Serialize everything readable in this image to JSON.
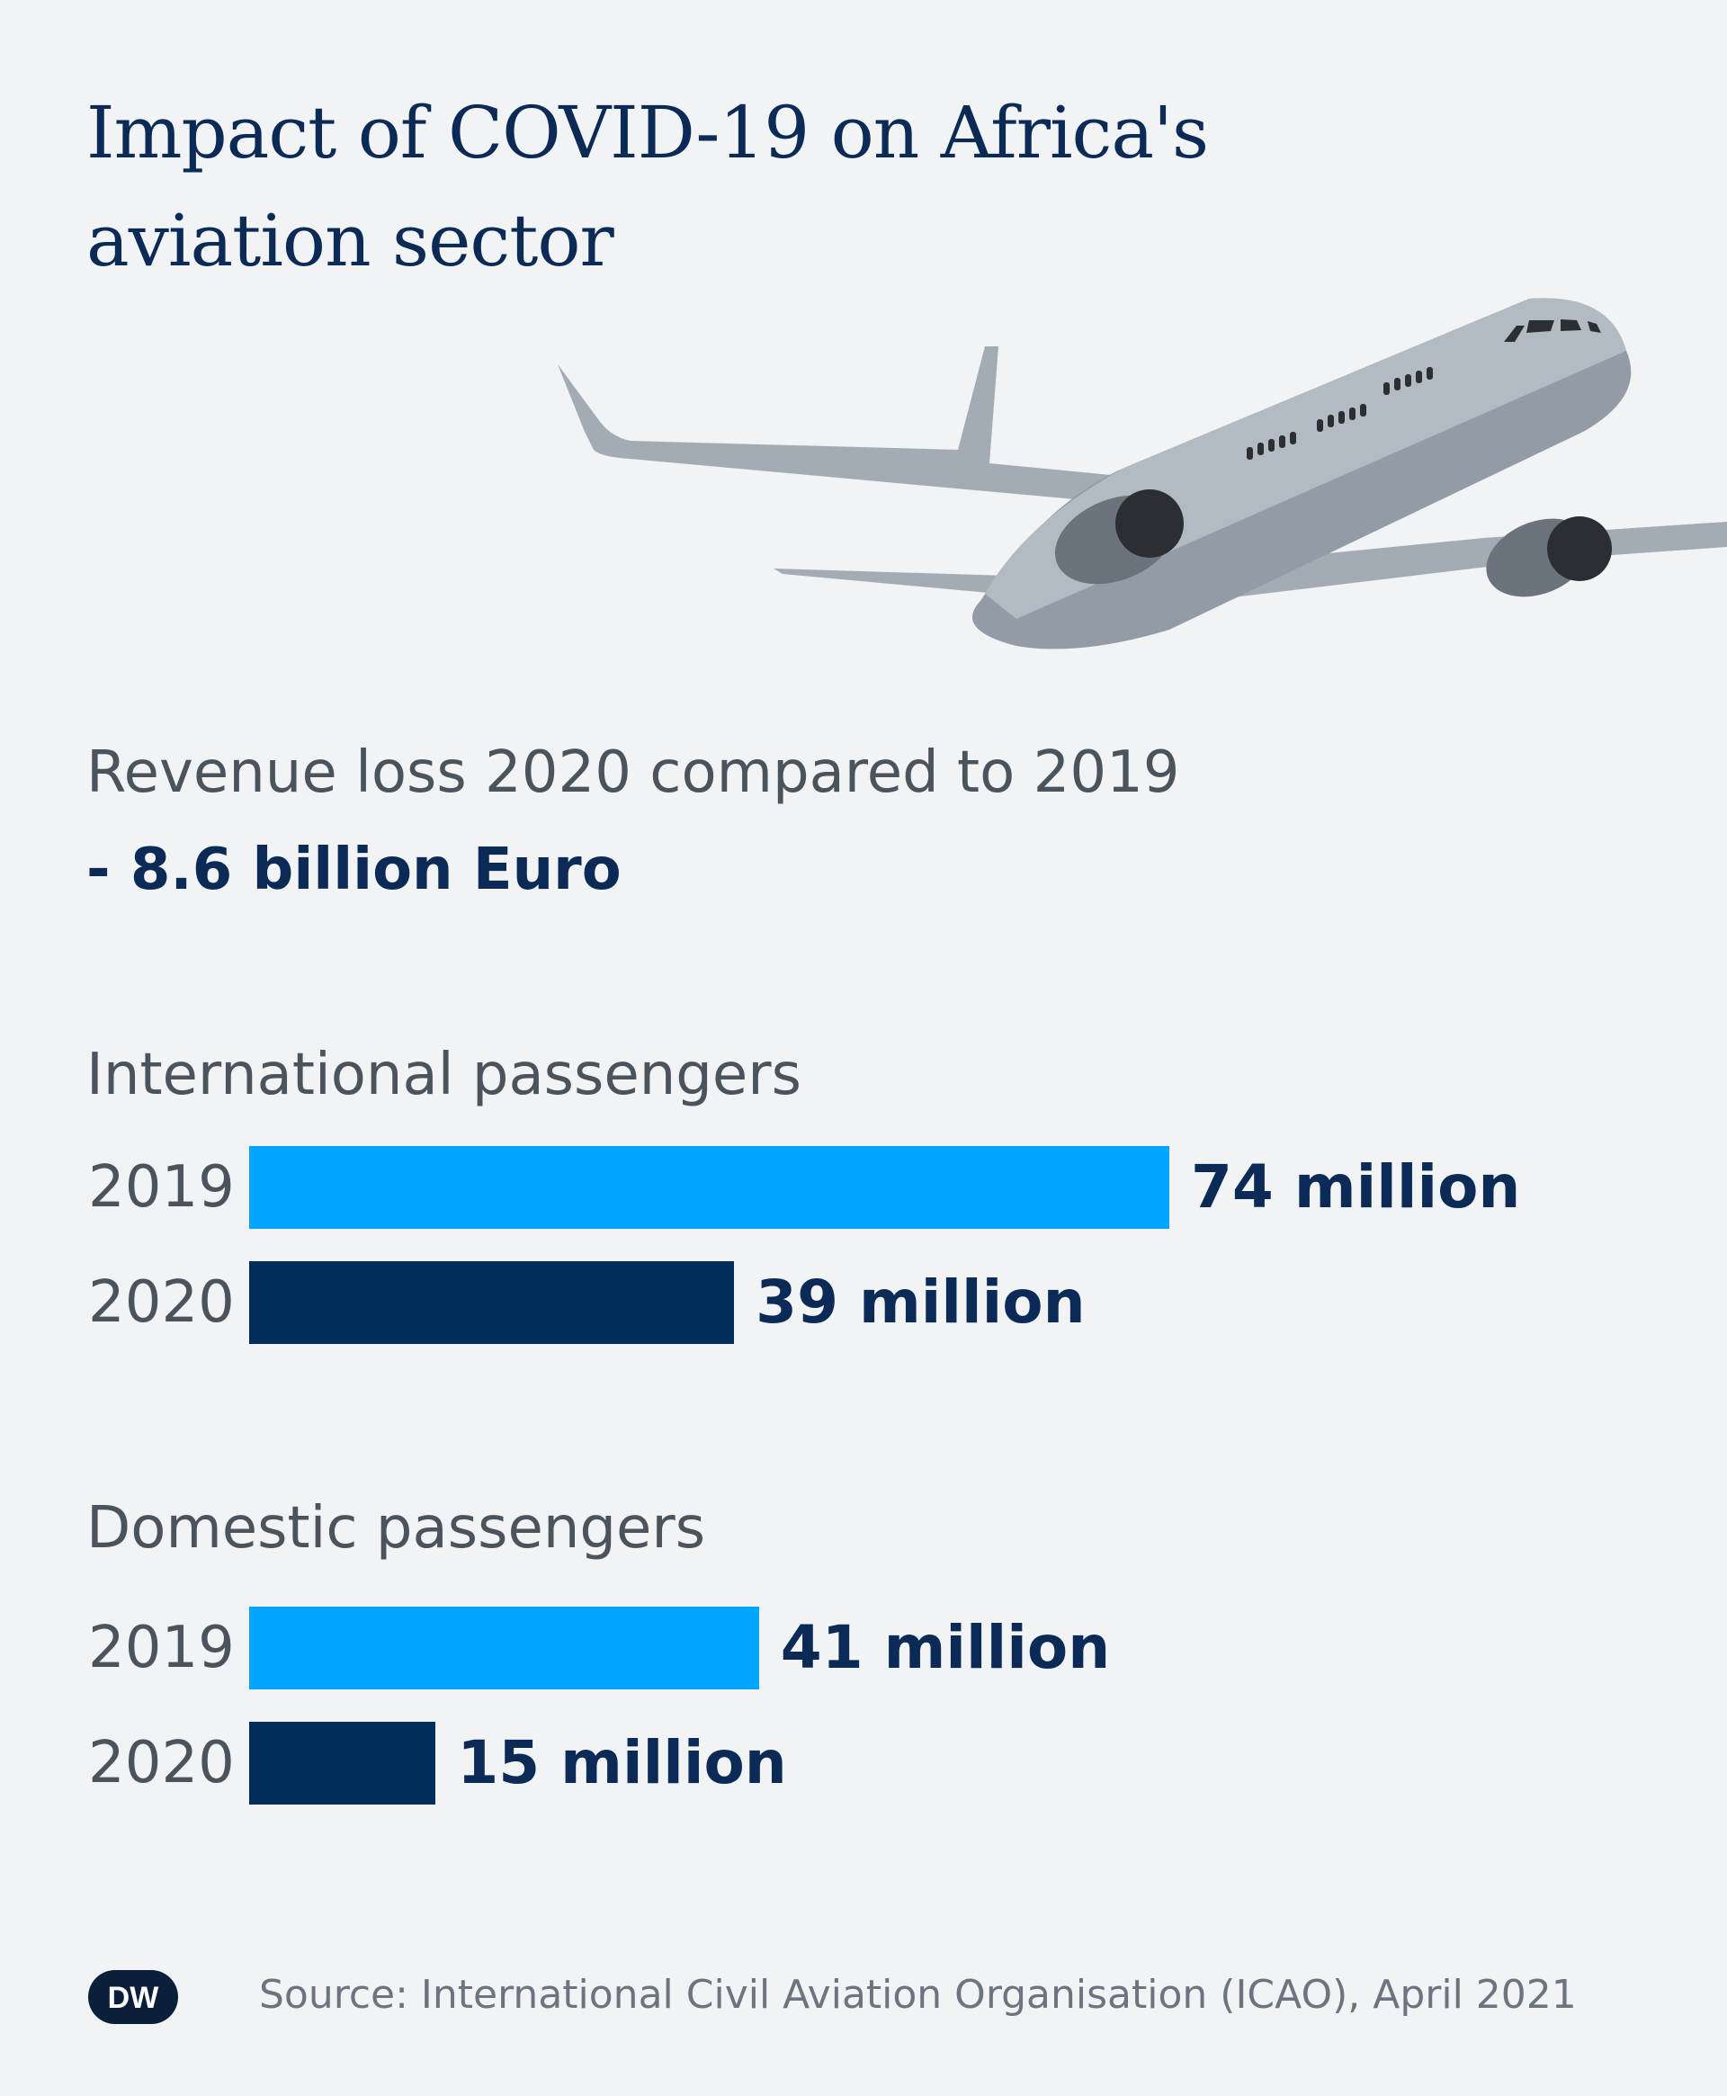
{
  "title_line1": "Impact of COVID-19 on Africa's",
  "title_line2": "aviation sector",
  "revenue": {
    "label": "Revenue loss 2020 compared to 2019",
    "value": "- 8.6 billion Euro"
  },
  "colors": {
    "2019": "#00a5ff",
    "2020": "#002d5a",
    "text_dark": "#0b2a55",
    "background": "#f1f3f5"
  },
  "chart_data": [
    {
      "type": "bar",
      "title": "International passengers",
      "categories": [
        "2019",
        "2020"
      ],
      "values": [
        74,
        39
      ],
      "value_labels": [
        "74 million",
        "39 million"
      ],
      "unit": "million"
    },
    {
      "type": "bar",
      "title": "Domestic passengers",
      "categories": [
        "2019",
        "2020"
      ],
      "values": [
        41,
        15
      ],
      "value_labels": [
        "41 million",
        "15 million"
      ],
      "unit": "million"
    }
  ],
  "logo": "DW",
  "source": "Source: International Civil Aviation Organisation (ICAO), April 2021"
}
